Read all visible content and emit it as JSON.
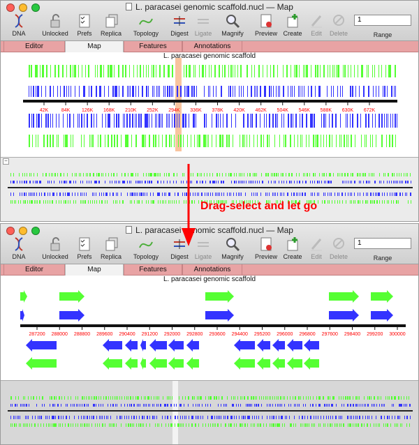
{
  "colors": {
    "forward": "#3333ff",
    "reverse_top": "#3333ff",
    "green": "#55ff33",
    "axis": "#111111",
    "tick_label": "#ff0000",
    "tab_bar": "#e8a3a4",
    "selection": "#f4a46b",
    "annotation": "#ff0000"
  },
  "windows": [
    {
      "title": "L. paracasei genomic scaffold.nucl — Map",
      "map_title": "L. paracasei genomic scaffold",
      "range_value": "1",
      "ticks": [
        "42K",
        "84K",
        "126K",
        "168K",
        "210K",
        "252K",
        "294K",
        "336K",
        "378K",
        "420K",
        "462K",
        "504K",
        "546K",
        "588K",
        "630K",
        "672K"
      ]
    },
    {
      "title": "L. paracasei genomic scaffold.nucl — Map",
      "map_title": "L. paracasei genomic scaffold",
      "range_value": "1",
      "ticks": [
        "287200",
        "288000",
        "288800",
        "289600",
        "290400",
        "291200",
        "292000",
        "292800",
        "293600",
        "294400",
        "295200",
        "296000",
        "296800",
        "297600",
        "298400",
        "299200",
        "300000"
      ]
    }
  ],
  "toolbar": {
    "items": [
      {
        "label": "DNA",
        "icon": "dna-icon",
        "enabled": true
      },
      {
        "label": "Unlocked",
        "icon": "padlock-icon",
        "enabled": true
      },
      {
        "label": "Prefs",
        "icon": "checklist-icon",
        "enabled": true
      },
      {
        "label": "Replica",
        "icon": "stacked-pages-icon",
        "enabled": true
      },
      {
        "label": "Topology",
        "icon": "topology-curve-icon",
        "enabled": true
      },
      {
        "label": "Digest",
        "icon": "scissors-digest-icon",
        "enabled": true
      },
      {
        "label": "Ligate",
        "icon": "ligate-icon",
        "enabled": false
      },
      {
        "label": "Magnify",
        "icon": "magnifier-icon",
        "enabled": true
      },
      {
        "label": "Preview",
        "icon": "preview-icon",
        "enabled": true
      },
      {
        "label": "Create",
        "icon": "plus-create-icon",
        "enabled": true
      },
      {
        "label": "Edit",
        "icon": "pencil-edit-icon",
        "enabled": false
      },
      {
        "label": "Delete",
        "icon": "delete-icon",
        "enabled": false
      }
    ],
    "range_label": "Range"
  },
  "tabs": [
    "Editor",
    "Map",
    "Features",
    "Annotations"
  ],
  "annotation": "Drag-select and let go"
}
